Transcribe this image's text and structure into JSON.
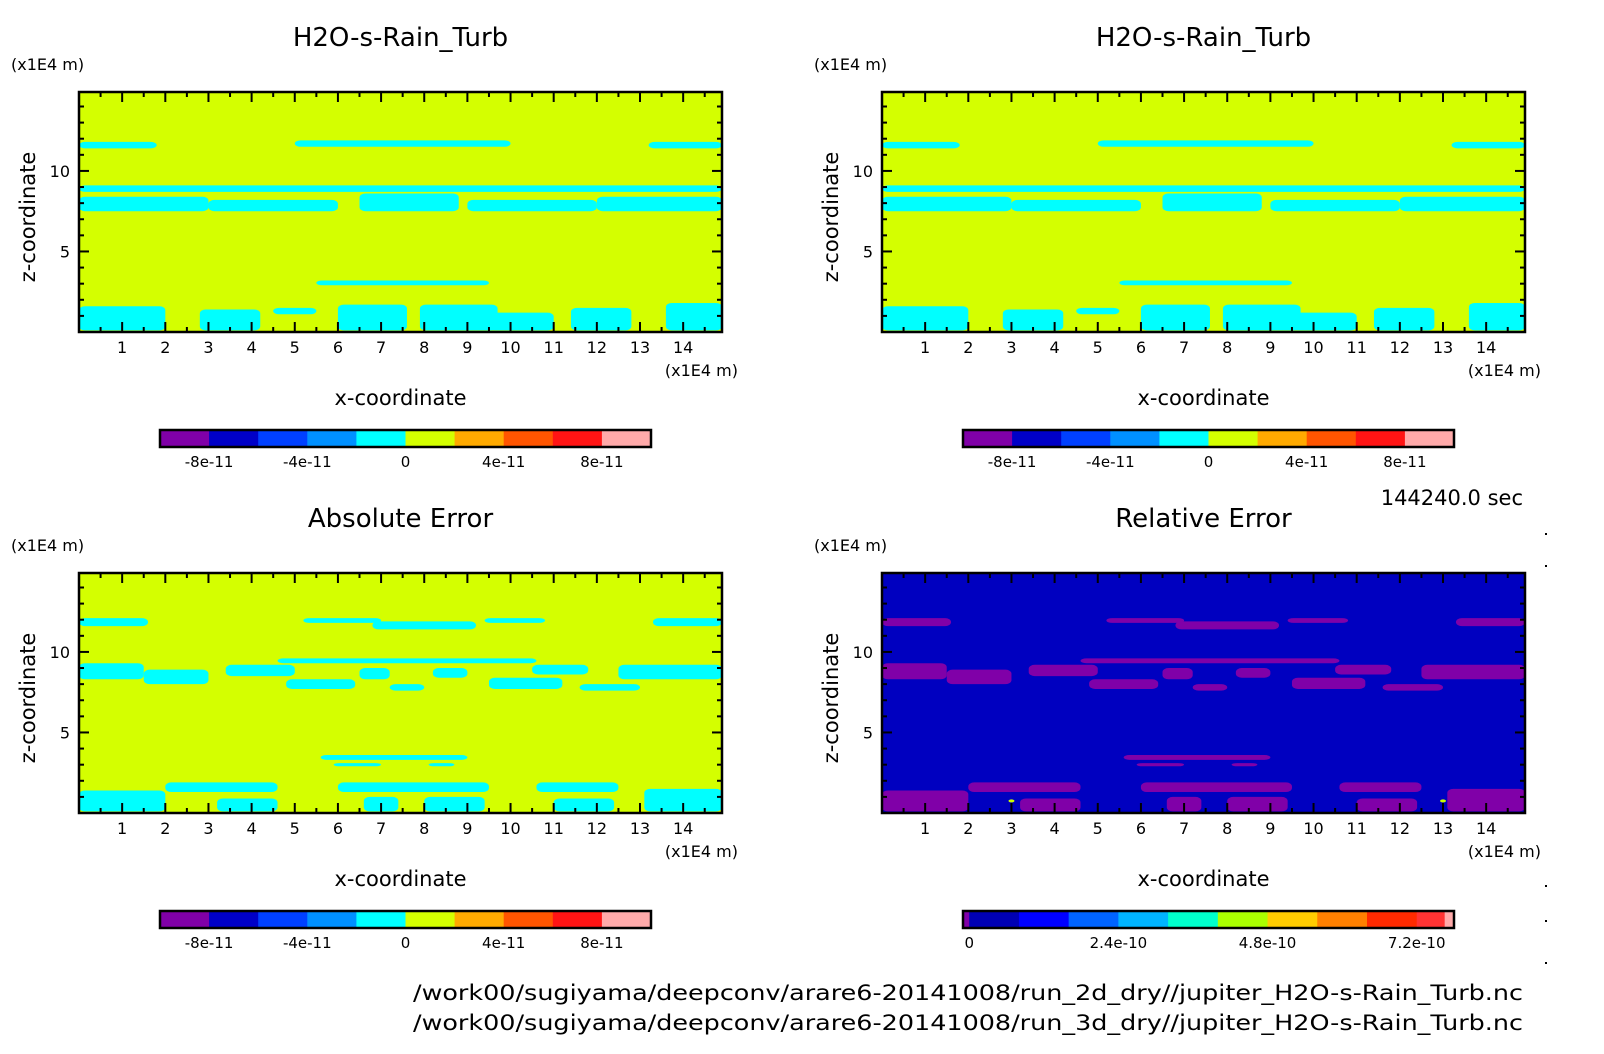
{
  "chart_data": [
    {
      "type": "heatmap",
      "id": "orig-2d",
      "title": "H2O-s-Rain_Turb",
      "xlabel": "x-coordinate",
      "ylabel": "z-coordinate",
      "x_unit": "(x1E4 m)",
      "y_unit": "(x1E4 m)",
      "xlim": [
        0,
        14.9
      ],
      "ylim": [
        0,
        14.9
      ],
      "xticks": [
        "1",
        "2",
        "3",
        "4",
        "5",
        "6",
        "7",
        "8",
        "9",
        "10",
        "11",
        "12",
        "13",
        "14"
      ],
      "yticks": [
        "5",
        "10"
      ],
      "background_color": "#d4ff00",
      "feature_color": "#00ffff",
      "colorbar": {
        "colors": [
          "#8000a8",
          "#0000c8",
          "#0040ff",
          "#0090ff",
          "#00ffff",
          "#d4ff00",
          "#ffaa00",
          "#ff5500",
          "#ff1414",
          "#ffaaaa"
        ],
        "range": [
          -1e-10,
          1e-10
        ],
        "tick_labels": [
          "-8e-11",
          "-4e-11",
          "0",
          "4e-11",
          "8e-11"
        ],
        "tick_values": [
          -8e-11,
          -4e-11,
          0,
          4e-11,
          8e-11
        ]
      },
      "features": "pattern-a"
    },
    {
      "type": "heatmap",
      "id": "orig-3d",
      "title": "H2O-s-Rain_Turb",
      "xlabel": "x-coordinate",
      "ylabel": "z-coordinate",
      "x_unit": "(x1E4 m)",
      "y_unit": "(x1E4 m)",
      "xlim": [
        0,
        14.9
      ],
      "ylim": [
        0,
        14.9
      ],
      "xticks": [
        "1",
        "2",
        "3",
        "4",
        "5",
        "6",
        "7",
        "8",
        "9",
        "10",
        "11",
        "12",
        "13",
        "14"
      ],
      "yticks": [
        "5",
        "10"
      ],
      "background_color": "#d4ff00",
      "feature_color": "#00ffff",
      "colorbar": {
        "colors": [
          "#8000a8",
          "#0000c8",
          "#0040ff",
          "#0090ff",
          "#00ffff",
          "#d4ff00",
          "#ffaa00",
          "#ff5500",
          "#ff1414",
          "#ffaaaa"
        ],
        "range": [
          -1e-10,
          1e-10
        ],
        "tick_labels": [
          "-8e-11",
          "-4e-11",
          "0",
          "4e-11",
          "8e-11"
        ],
        "tick_values": [
          -8e-11,
          -4e-11,
          0,
          4e-11,
          8e-11
        ]
      },
      "features": "pattern-a"
    },
    {
      "type": "heatmap",
      "id": "abs-error",
      "title": "Absolute Error",
      "xlabel": "x-coordinate",
      "ylabel": "z-coordinate",
      "x_unit": "(x1E4 m)",
      "y_unit": "(x1E4 m)",
      "xlim": [
        0,
        14.9
      ],
      "ylim": [
        0,
        14.9
      ],
      "xticks": [
        "1",
        "2",
        "3",
        "4",
        "5",
        "6",
        "7",
        "8",
        "9",
        "10",
        "11",
        "12",
        "13",
        "14"
      ],
      "yticks": [
        "5",
        "10"
      ],
      "background_color": "#d4ff00",
      "feature_color": "#00ffff",
      "colorbar": {
        "colors": [
          "#8000a8",
          "#0000c8",
          "#0040ff",
          "#0090ff",
          "#00ffff",
          "#d4ff00",
          "#ffaa00",
          "#ff5500",
          "#ff1414",
          "#ffaaaa"
        ],
        "range": [
          -1e-10,
          1e-10
        ],
        "tick_labels": [
          "-8e-11",
          "-4e-11",
          "0",
          "4e-11",
          "8e-11"
        ],
        "tick_values": [
          -8e-11,
          -4e-11,
          0,
          4e-11,
          8e-11
        ]
      },
      "features": "pattern-b"
    },
    {
      "type": "heatmap",
      "id": "rel-error",
      "title": "Relative Error",
      "xlabel": "x-coordinate",
      "ylabel": "z-coordinate",
      "x_unit": "(x1E4 m)",
      "y_unit": "(x1E4 m)",
      "xlim": [
        0,
        14.9
      ],
      "ylim": [
        0,
        14.9
      ],
      "xticks": [
        "1",
        "2",
        "3",
        "4",
        "5",
        "6",
        "7",
        "8",
        "9",
        "10",
        "11",
        "12",
        "13",
        "14"
      ],
      "yticks": [
        "5",
        "10"
      ],
      "background_color": "#0000c0",
      "feature_color": "#8000a8",
      "colorbar": {
        "colors": [
          "#8000a8",
          "#0000b4",
          "#0000ff",
          "#0064ff",
          "#00b4ff",
          "#00ffcc",
          "#aaff00",
          "#ffcc00",
          "#ff8000",
          "#ff2a00",
          "#ff3333",
          "#ffaaaa"
        ],
        "boundaries": [
          -1e-11,
          0,
          8e-11,
          1.6e-10,
          2.4e-10,
          3.2e-10,
          4e-10,
          4.8e-10,
          5.6e-10,
          6.4e-10,
          7.2e-10,
          7.65e-10,
          7.8e-10
        ],
        "tick_labels": [
          "0",
          "2.4e-10",
          "4.8e-10",
          "7.2e-10"
        ],
        "tick_values": [
          0,
          2.4e-10,
          4.8e-10,
          7.2e-10
        ]
      },
      "features": "pattern-b"
    }
  ],
  "time_label": "144240.0 sec",
  "files": [
    "/work00/sugiyama/deepconv/arare6-20141008/run_2d_dry//jupiter_H2O-s-Rain_Turb.nc",
    "/work00/sugiyama/deepconv/arare6-20141008/run_3d_dry//jupiter_H2O-s-Rain_Turb.nc"
  ]
}
